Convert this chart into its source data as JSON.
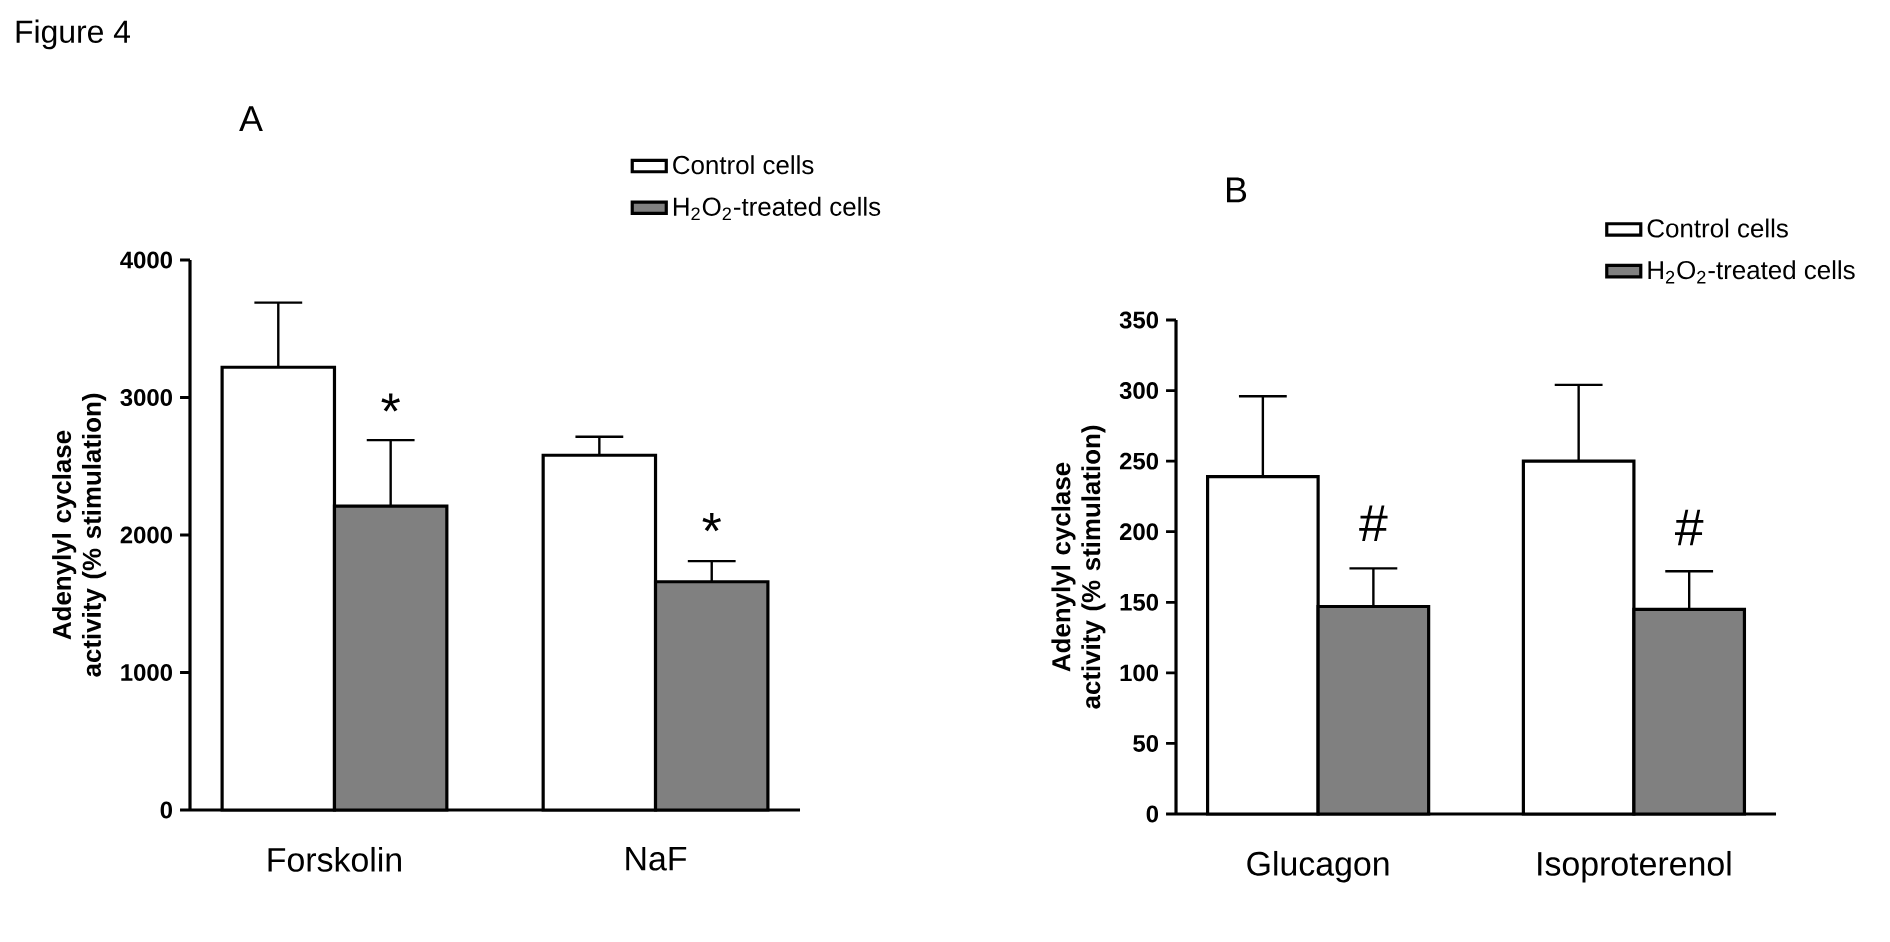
{
  "chart_data": [
    {
      "type": "bar",
      "title": "A",
      "ylabel": "Adenylyl cyclase activity (% stimulation)",
      "categories": [
        "Forskolin",
        "NaF"
      ],
      "series": [
        {
          "name": "Control cells",
          "color": "#ffffff",
          "values": [
            3220,
            2580
          ],
          "errors": [
            [
              3220,
              3690
            ],
            [
              2580,
              2715
            ]
          ]
        },
        {
          "name": "H$_{2}$O$_{2}$-treated cells",
          "color": "#808080",
          "values": [
            2210,
            1660
          ],
          "errors": [
            [
              2210,
              2690
            ],
            [
              1660,
              1810
            ]
          ]
        }
      ],
      "ylim": [
        0,
        4000
      ],
      "yticks": [
        0,
        1000,
        2000,
        3000,
        4000
      ],
      "legend": "top right",
      "grid": false,
      "annotations": [
        "Figure 4",
        {
          "text": "*",
          "x": "Forskolin",
          "y": 2900
        },
        {
          "text": "*",
          "x": "NaF",
          "y": 2030
        }
      ]
    },
    {
      "type": "bar",
      "title": "B",
      "ylabel": "Adenylyl cyclase activity (% stimulation)",
      "categories": [
        "Glucagon",
        "Isoproterenol"
      ],
      "series": [
        {
          "name": "Control cells",
          "color": "#ffffff",
          "values": [
            239,
            250
          ],
          "errors": [
            [
              239,
              296
            ],
            [
              250,
              304
            ]
          ]
        },
        {
          "name": "H$_{2}$O$_{2}$-treated cells",
          "color": "#808080",
          "values": [
            147,
            145
          ],
          "errors": [
            [
              147,
              174
            ],
            [
              145,
              172
            ]
          ]
        }
      ],
      "ylim": [
        0,
        350
      ],
      "yticks": [
        0,
        50,
        100,
        150,
        200,
        250,
        300,
        350
      ],
      "legend": "top right",
      "grid": false,
      "annotations": [
        {
          "text": "#",
          "x": "Glucagon",
          "y": 206
        },
        {
          "text": "#",
          "x": "Isoproterenol",
          "y": 203
        }
      ]
    }
  ]
}
